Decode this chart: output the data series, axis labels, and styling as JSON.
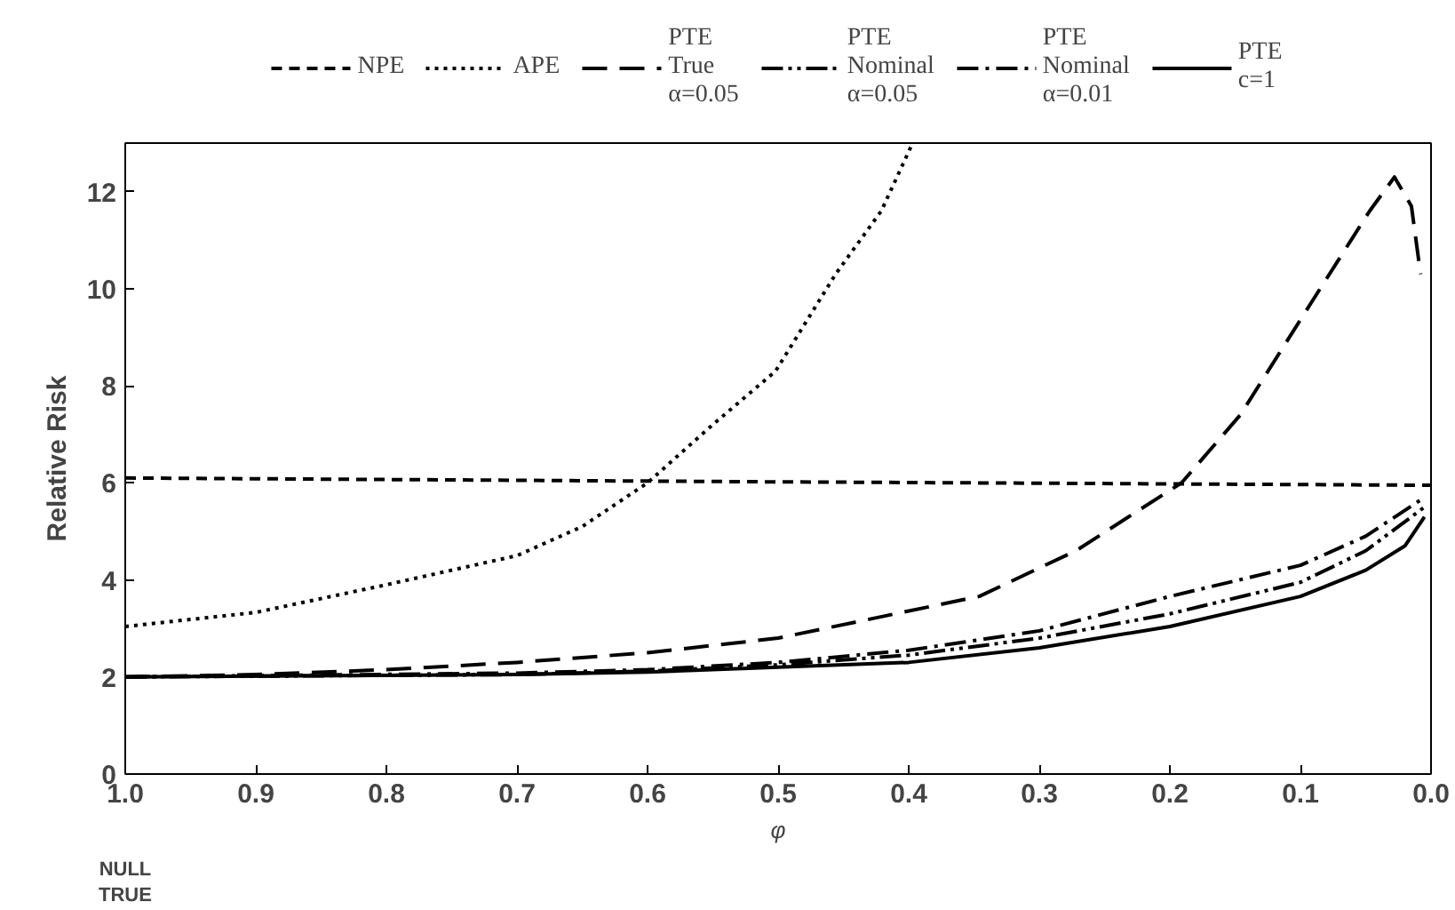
{
  "chart_data": {
    "type": "line",
    "xlabel": "φ",
    "ylabel": "Relative Risk",
    "xlim": [
      1.0,
      0.0
    ],
    "ylim": [
      0,
      13
    ],
    "xticks": [
      {
        "value": 1.0,
        "label": "1.0"
      },
      0.9,
      0.8,
      0.7,
      0.6,
      0.5,
      0.4,
      0.3,
      0.2,
      0.1,
      {
        "value": 0.0,
        "label": "0.0"
      }
    ],
    "yticks": [
      0,
      2,
      4,
      6,
      8,
      10,
      12
    ],
    "grid": false,
    "legend": "top",
    "marker": "none",
    "annotations": [
      "NULL\nTRUE"
    ],
    "series": [
      {
        "name": "NPE",
        "color": "#000000",
        "line_style": "dashed",
        "x": [
          1.0,
          0.5,
          0.0
        ],
        "values": [
          6.1,
          6.02,
          5.95
        ]
      },
      {
        "name": "APE",
        "color": "#000000",
        "line_style": "dotted",
        "x": [
          1.0,
          0.9,
          0.8,
          0.7,
          0.65,
          0.6,
          0.55,
          0.502,
          0.456,
          0.421,
          0.397
        ],
        "values": [
          3.04,
          3.33,
          3.9,
          4.5,
          5.1,
          6.0,
          7.2,
          8.3,
          10.3,
          11.6,
          13.0
        ]
      },
      {
        "name": "PTE\nTrue\nα=0.05",
        "color": "#000000",
        "line_style": "longdashed",
        "x": [
          1.0,
          0.9,
          0.8,
          0.7,
          0.6,
          0.5,
          0.346,
          0.272,
          0.191,
          0.146,
          0.092,
          0.047,
          0.028,
          0.015,
          0.008
        ],
        "values": [
          2.0,
          2.05,
          2.15,
          2.3,
          2.5,
          2.8,
          3.66,
          4.6,
          6.0,
          7.4,
          9.7,
          11.6,
          12.3,
          11.7,
          10.3
        ]
      },
      {
        "name": "PTE\nNominal\nα=0.05",
        "color": "#000000",
        "line_style": "dashdotdot",
        "x": [
          1.0,
          0.7,
          0.6,
          0.5,
          0.4,
          0.3,
          0.2,
          0.1,
          0.05,
          0.005
        ],
        "values": [
          2.0,
          2.05,
          2.12,
          2.25,
          2.45,
          2.8,
          3.3,
          3.95,
          4.6,
          5.5
        ]
      },
      {
        "name": "PTE\nNominal\nα=0.01",
        "color": "#000000",
        "line_style": "dashdot",
        "x": [
          1.0,
          0.7,
          0.6,
          0.5,
          0.4,
          0.3,
          0.2,
          0.1,
          0.05,
          0.005
        ],
        "values": [
          2.0,
          2.08,
          2.15,
          2.3,
          2.55,
          2.95,
          3.66,
          4.3,
          4.9,
          5.7
        ]
      },
      {
        "name": "PTE\nc=1",
        "color": "#000000",
        "line_style": "solid",
        "x": [
          1.0,
          0.7,
          0.6,
          0.5,
          0.4,
          0.3,
          0.2,
          0.1,
          0.05,
          0.02,
          0.005
        ],
        "values": [
          2.0,
          2.05,
          2.1,
          2.2,
          2.3,
          2.6,
          3.04,
          3.66,
          4.2,
          4.7,
          5.3
        ]
      }
    ]
  }
}
